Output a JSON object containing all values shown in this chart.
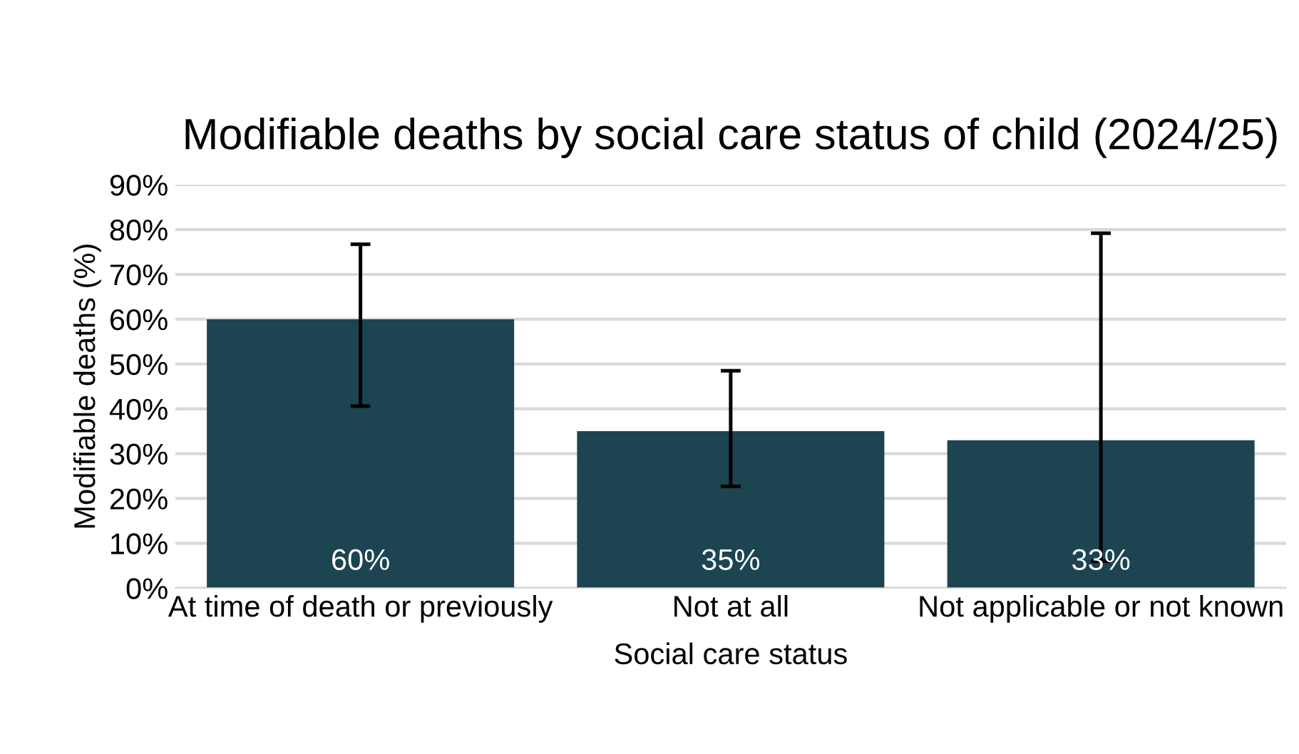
{
  "chart_data": {
    "type": "bar",
    "title": "Modifiable deaths by social care status of child (2024/25)",
    "xlabel": "Social care status",
    "ylabel": "Modifiable deaths (%)",
    "categories": [
      "At time of death or previously",
      "Not at all",
      "Not applicable or not known"
    ],
    "values": [
      60,
      35,
      33
    ],
    "color": "#1c4451",
    "value_labels": [
      "60%",
      "35%",
      "33%"
    ],
    "errors": [
      [
        40.6,
        76.7
      ],
      [
        22.7,
        48.5
      ],
      [
        6.0,
        79.2
      ]
    ],
    "ylim": [
      0,
      90
    ],
    "yticks": [
      {
        "value": 0,
        "label": "0%"
      },
      {
        "value": 10,
        "label": "10%"
      },
      {
        "value": 20,
        "label": "20%"
      },
      {
        "value": 30,
        "label": "30%"
      },
      {
        "value": 40,
        "label": "40%"
      },
      {
        "value": 50,
        "label": "50%"
      },
      {
        "value": 60,
        "label": "60%"
      },
      {
        "value": 70,
        "label": "70%"
      },
      {
        "value": 80,
        "label": "80%"
      },
      {
        "value": 90,
        "label": "90%"
      }
    ],
    "grid": "y",
    "legend": false
  }
}
